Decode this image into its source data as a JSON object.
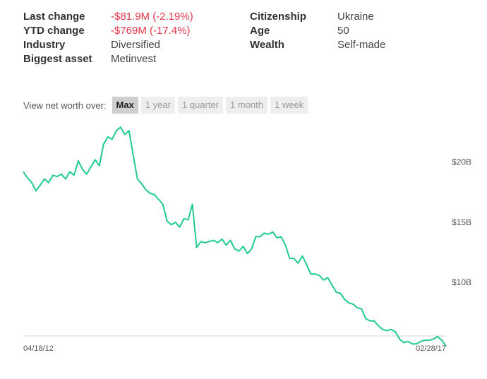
{
  "stats": {
    "left": [
      {
        "label": "Last change",
        "value": "-$81.9M (-2.19%)",
        "negative": true
      },
      {
        "label": "YTD change",
        "value": "-$769M (-17.4%)",
        "negative": true
      },
      {
        "label": "Industry",
        "value": "Diversified",
        "negative": false
      },
      {
        "label": "Biggest asset",
        "value": "Metinvest",
        "negative": false
      }
    ],
    "right": [
      {
        "label": "Citizenship",
        "value": "Ukraine"
      },
      {
        "label": "Age",
        "value": "50"
      },
      {
        "label": "Wealth",
        "value": "Self-made"
      }
    ]
  },
  "range_selector": {
    "label": "View net worth over:",
    "options": [
      "Max",
      "1 year",
      "1 quarter",
      "1 month",
      "1 week"
    ],
    "active": "Max"
  },
  "colors": {
    "line": "#1fcb8e",
    "negative": "#e5374b"
  },
  "chart_data": {
    "type": "line",
    "title": "",
    "xlabel": "",
    "ylabel": "",
    "x_tick_labels": [
      "04/18/12",
      "02/28/17"
    ],
    "y_tick_labels": [
      "$10B",
      "$15B",
      "$20B"
    ],
    "y_ticks": [
      10,
      15,
      20
    ],
    "ylim": [
      4.5,
      23.5
    ],
    "grid": false,
    "series": [
      {
        "values": [
          19.2,
          18.7,
          18.3,
          17.6,
          18.1,
          18.6,
          18.3,
          18.9,
          18.8,
          19.0,
          18.6,
          19.2,
          18.9,
          20.1,
          19.4,
          19.0,
          19.6,
          20.2,
          19.7,
          21.5,
          22.1,
          21.9,
          22.6,
          22.9,
          22.3,
          22.6,
          20.6,
          18.6,
          18.2,
          17.7,
          17.4,
          17.3,
          16.9,
          16.5,
          15.1,
          14.8,
          15.0,
          14.6,
          15.3,
          15.2,
          16.5,
          12.9,
          13.4,
          13.3,
          13.4,
          13.5,
          13.3,
          13.6,
          13.1,
          13.5,
          12.8,
          12.6,
          13.0,
          12.4,
          12.8,
          13.8,
          13.8,
          14.1,
          14.0,
          14.2,
          13.7,
          13.8,
          13.1,
          12.0,
          12.0,
          11.6,
          12.2,
          11.5,
          10.7,
          10.7,
          10.6,
          10.2,
          10.4,
          9.8,
          9.2,
          9.1,
          8.6,
          8.3,
          8.2,
          7.9,
          7.8,
          7.0,
          6.8,
          6.8,
          6.4,
          6.1,
          6.0,
          6.1,
          5.9,
          5.3,
          5.0,
          5.1,
          4.9,
          4.9,
          5.1,
          5.2,
          5.2,
          5.3,
          5.5,
          5.2,
          4.7
        ]
      }
    ]
  }
}
